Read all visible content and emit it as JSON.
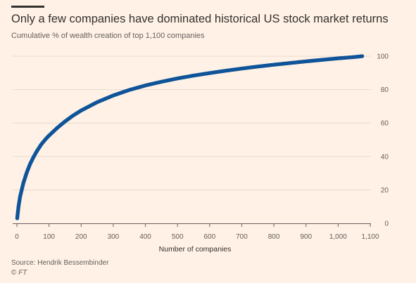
{
  "header": {
    "title": "Only a few companies have dominated historical US stock market returns",
    "subtitle": "Cumulative % of wealth creation of top 1,100 companies"
  },
  "footer": {
    "source": "Source: Hendrik Bessembinder",
    "copyright_symbol": "©",
    "publisher": "FT"
  },
  "colors": {
    "background": "#fff1e5",
    "series": "#0f5499",
    "grid": "#e6d9ce",
    "text": "#33302e",
    "muted_text": "#66605c",
    "axis": "#66605c"
  },
  "chart_data": {
    "type": "scatter",
    "title": "Only a few companies have dominated historical US stock market returns",
    "subtitle": "Cumulative % of wealth creation of top 1,100 companies",
    "xlabel": "Number of companies",
    "ylabel": "",
    "xlim": [
      0,
      1100
    ],
    "ylim": [
      0,
      100
    ],
    "x_ticks": [
      0,
      100,
      200,
      300,
      400,
      500,
      600,
      700,
      800,
      900,
      1000,
      1100
    ],
    "x_tick_labels": [
      "0",
      "100",
      "200",
      "300",
      "400",
      "500",
      "600",
      "700",
      "800",
      "900",
      "1,000",
      "1,100"
    ],
    "y_ticks": [
      0,
      20,
      40,
      60,
      80,
      100
    ],
    "y_tick_labels": [
      "0",
      "20",
      "40",
      "60",
      "80",
      "100"
    ],
    "y_axis_side": "right",
    "grid": true,
    "grid_axis": "y",
    "series": [
      {
        "x": [
          1,
          3,
          5,
          10,
          15,
          20,
          30,
          40,
          50,
          60,
          75,
          90,
          100,
          125,
          150,
          175,
          200,
          250,
          300,
          350,
          400,
          450,
          500,
          550,
          600,
          650,
          700,
          750,
          800,
          850,
          900,
          950,
          1000,
          1050,
          1075
        ],
        "y": [
          3,
          6.5,
          10,
          16,
          20,
          24,
          30,
          35,
          39,
          42.5,
          47,
          50.5,
          52.5,
          57,
          61,
          64.5,
          67.5,
          72.5,
          76.5,
          79.8,
          82.5,
          84.7,
          86.7,
          88.4,
          89.9,
          91.3,
          92.6,
          93.8,
          94.9,
          95.9,
          96.9,
          97.8,
          98.7,
          99.5,
          100
        ]
      }
    ]
  }
}
